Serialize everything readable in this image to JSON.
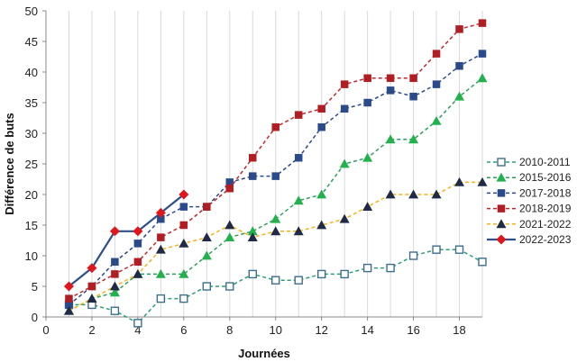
{
  "chart_data": {
    "type": "line",
    "title": "",
    "xlabel": "Journées",
    "ylabel": "Différence de buts",
    "xlim": [
      0,
      19
    ],
    "ylim": [
      0,
      50
    ],
    "x_ticks": [
      0,
      2,
      4,
      6,
      8,
      10,
      12,
      14,
      16,
      18
    ],
    "y_ticks": [
      0,
      5,
      10,
      15,
      20,
      25,
      30,
      35,
      40,
      45,
      50
    ],
    "grid": "vertical-only",
    "legend_position": "right",
    "series": [
      {
        "name": "2010-2011",
        "color": "#2e9e76",
        "line_style": "dashed",
        "marker": "square-open",
        "marker_color": "#3e6e8e",
        "x": [
          1,
          2,
          3,
          4,
          5,
          6,
          7,
          8,
          9,
          10,
          11,
          12,
          13,
          14,
          15,
          16,
          17,
          18,
          19
        ],
        "values": [
          2,
          2,
          1,
          -1,
          3,
          3,
          5,
          5,
          7,
          6,
          6,
          7,
          7,
          8,
          8,
          10,
          11,
          11,
          9
        ]
      },
      {
        "name": "2015-2016",
        "color": "#2e9e60",
        "line_style": "dashed",
        "marker": "triangle",
        "marker_color": "#22b14c",
        "x": [
          1,
          2,
          3,
          4,
          5,
          6,
          7,
          8,
          9,
          10,
          11,
          12,
          13,
          14,
          15,
          16,
          17,
          18,
          19
        ],
        "values": [
          1,
          3,
          4,
          7,
          7,
          7,
          10,
          13,
          14,
          16,
          19,
          20,
          25,
          26,
          29,
          29,
          32,
          36,
          39
        ]
      },
      {
        "name": "2017-2018",
        "color": "#2b4a8a",
        "line_style": "dashed",
        "marker": "square",
        "marker_color": "#2b4a8a",
        "x": [
          1,
          2,
          3,
          4,
          5,
          6,
          7,
          8,
          9,
          10,
          11,
          12,
          13,
          14,
          15,
          16,
          17,
          18,
          19
        ],
        "values": [
          2,
          5,
          9,
          12,
          16,
          18,
          18,
          22,
          23,
          23,
          26,
          31,
          34,
          35,
          37,
          36,
          38,
          41,
          43
        ]
      },
      {
        "name": "2018-2019",
        "color": "#c0282d",
        "line_style": "dashed",
        "marker": "square",
        "marker_color": "#b01e23",
        "x": [
          1,
          2,
          3,
          4,
          5,
          6,
          7,
          8,
          9,
          10,
          11,
          12,
          13,
          14,
          15,
          16,
          17,
          18,
          19
        ],
        "values": [
          3,
          5,
          7,
          9,
          13,
          15,
          18,
          21,
          26,
          31,
          33,
          34,
          38,
          39,
          39,
          39,
          43,
          47,
          48
        ]
      },
      {
        "name": "2021-2022",
        "color": "#f5b21a",
        "line_style": "dashed",
        "marker": "triangle",
        "marker_color": "#1f2b46",
        "x": [
          1,
          2,
          3,
          4,
          5,
          6,
          7,
          8,
          9,
          10,
          11,
          12,
          13,
          14,
          15,
          16,
          17,
          18,
          19
        ],
        "values": [
          1,
          3,
          5,
          7,
          11,
          12,
          13,
          15,
          13,
          14,
          14,
          15,
          16,
          18,
          20,
          20,
          20,
          22,
          22
        ]
      },
      {
        "name": "2022-2023",
        "color": "#2c4f8e",
        "line_style": "solid",
        "marker": "diamond",
        "marker_color": "#e0161b",
        "x": [
          1,
          2,
          3,
          4,
          5,
          6
        ],
        "values": [
          5,
          8,
          14,
          14,
          17,
          20
        ]
      }
    ]
  }
}
